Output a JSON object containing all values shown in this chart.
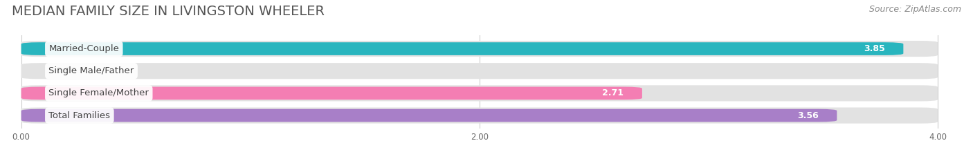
{
  "title": "MEDIAN FAMILY SIZE IN LIVINGSTON WHEELER",
  "source": "Source: ZipAtlas.com",
  "categories": [
    "Married-Couple",
    "Single Male/Father",
    "Single Female/Mother",
    "Total Families"
  ],
  "values": [
    3.85,
    0.0,
    2.71,
    3.56
  ],
  "bar_colors": [
    "#29b5be",
    "#a8c0e8",
    "#f47eb3",
    "#a87fc8"
  ],
  "xlim_max": 4.0,
  "xticks": [
    0.0,
    2.0,
    4.0
  ],
  "xtick_labels": [
    "0.00",
    "2.00",
    "4.00"
  ],
  "title_fontsize": 14,
  "source_fontsize": 9,
  "label_fontsize": 9.5,
  "value_fontsize": 9,
  "bg_color": "#ffffff",
  "bar_bg_color": "#e2e2e2",
  "grid_color": "#cccccc",
  "title_color": "#555555",
  "source_color": "#888888"
}
